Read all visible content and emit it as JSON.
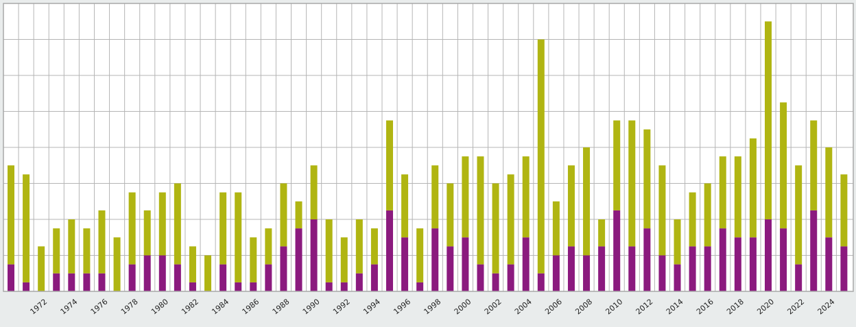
{
  "chart_data": {
    "type": "bar",
    "stacked": true,
    "title": "",
    "xlabel": "",
    "ylabel": "",
    "ylim": [
      0,
      32
    ],
    "grid": true,
    "legend": "none",
    "categories": [
      "1970",
      "1971",
      "1972",
      "1973",
      "1974",
      "1975",
      "1976",
      "1977",
      "1978",
      "1979",
      "1980",
      "1981",
      "1982",
      "1983",
      "1984",
      "1985",
      "1986",
      "1987",
      "1988",
      "1989",
      "1990",
      "1991",
      "1992",
      "1993",
      "1994",
      "1995",
      "1996",
      "1997",
      "1998",
      "1999",
      "2000",
      "2001",
      "2002",
      "2003",
      "2004",
      "2005",
      "2006",
      "2007",
      "2008",
      "2009",
      "2010",
      "2011",
      "2012",
      "2013",
      "2014",
      "2015",
      "2016",
      "2017",
      "2018",
      "2019",
      "2020",
      "2021",
      "2022",
      "2023",
      "2024",
      "2025"
    ],
    "tick_labels": [
      "1972",
      "1974",
      "1976",
      "1978",
      "1980",
      "1982",
      "1984",
      "1986",
      "1988",
      "1990",
      "1992",
      "1994",
      "1996",
      "1998",
      "2000",
      "2002",
      "2004",
      "2006",
      "2008",
      "2010",
      "2012",
      "2014",
      "2016",
      "2018",
      "2020",
      "2022",
      "2024"
    ],
    "series": [
      {
        "color": "#8b1a7e",
        "values": [
          3,
          1,
          0,
          2,
          2,
          2,
          2,
          0,
          3,
          4,
          4,
          3,
          1,
          0,
          3,
          1,
          1,
          3,
          5,
          7,
          8,
          1,
          1,
          2,
          3,
          9,
          6,
          1,
          7,
          5,
          6,
          3,
          2,
          3,
          6,
          2,
          4,
          5,
          4,
          5,
          9,
          5,
          7,
          4,
          3,
          5,
          5,
          7,
          6,
          6,
          8,
          7,
          3,
          9,
          6,
          5
        ]
      },
      {
        "color": "#b0b512",
        "values": [
          11,
          12,
          5,
          5,
          6,
          5,
          7,
          6,
          8,
          5,
          7,
          9,
          4,
          4,
          8,
          10,
          5,
          4,
          7,
          3,
          6,
          7,
          5,
          6,
          4,
          10,
          7,
          6,
          7,
          7,
          9,
          12,
          10,
          10,
          9,
          26,
          6,
          9,
          12,
          3,
          10,
          14,
          11,
          10,
          5,
          6,
          7,
          8,
          9,
          11,
          22,
          14,
          11,
          10,
          10,
          8
        ]
      }
    ]
  }
}
